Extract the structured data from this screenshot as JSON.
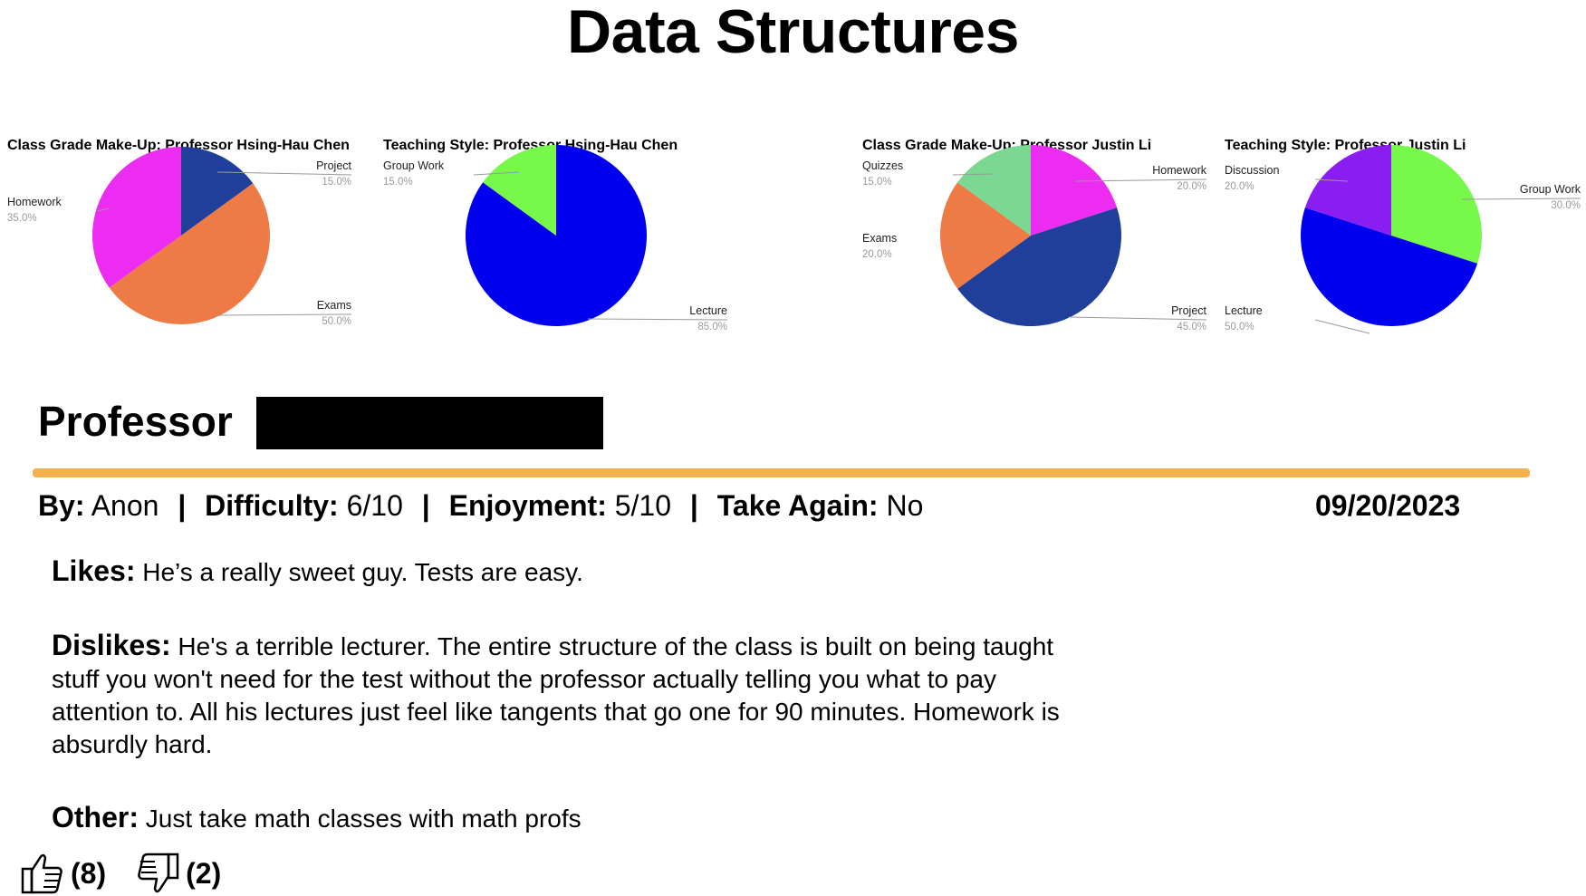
{
  "page": {
    "title": "Data Structures"
  },
  "chart_data": [
    {
      "type": "pie",
      "title": "Class Grade Make-Up: Professor Hsing-Hau Chen",
      "slices": [
        {
          "label": "Project",
          "value": 15.0,
          "color": "#1f3f9a"
        },
        {
          "label": "Exams",
          "value": 50.0,
          "color": "#ee7a45"
        },
        {
          "label": "Homework",
          "value": 35.0,
          "color": "#ec2cf0"
        }
      ]
    },
    {
      "type": "pie",
      "title": "Teaching Style: Professor Hsing-Hau Chen",
      "slices": [
        {
          "label": "Lecture",
          "value": 85.0,
          "color": "#0000ee"
        },
        {
          "label": "Group Work",
          "value": 15.0,
          "color": "#78f84a"
        }
      ]
    },
    {
      "type": "pie",
      "title": "Class Grade Make-Up: Professor Justin Li",
      "slices": [
        {
          "label": "Homework",
          "value": 20.0,
          "color": "#ec2cf0"
        },
        {
          "label": "Project",
          "value": 45.0,
          "color": "#1f3f9a"
        },
        {
          "label": "Exams",
          "value": 20.0,
          "color": "#ee7a45"
        },
        {
          "label": "Quizzes",
          "value": 15.0,
          "color": "#7ad892"
        }
      ]
    },
    {
      "type": "pie",
      "title": "Teaching Style: Professor Justin Li",
      "slices": [
        {
          "label": "Group Work",
          "value": 30.0,
          "color": "#78f84a"
        },
        {
          "label": "Lecture",
          "value": 50.0,
          "color": "#0000ee"
        },
        {
          "label": "Discussion",
          "value": 20.0,
          "color": "#8a1ef0"
        }
      ]
    }
  ],
  "review": {
    "heading": "Professor",
    "by_label": "By:",
    "by_value": "Anon",
    "difficulty_label": "Difficulty:",
    "difficulty_value": "6/10",
    "enjoyment_label": "Enjoyment:",
    "enjoyment_value": "5/10",
    "take_again_label": "Take Again:",
    "take_again_value": "No",
    "separator": "|",
    "date": "09/20/2023",
    "likes_label": "Likes:",
    "likes_text": "He’s a really sweet guy. Tests are easy.",
    "dislikes_label": "Dislikes:",
    "dislikes_text": "He's a terrible lecturer. The entire structure of the class is built on being taught stuff you won't need for the test without the professor actually telling you what to pay attention to. All his lectures just feel like tangents that go one for 90 minutes. Homework is absurdly hard.",
    "other_label": "Other:",
    "other_text": "Just take math classes with math profs",
    "thumbs_up_count": "(8)",
    "thumbs_down_count": "(2)",
    "thumbs_up_icon": "thumbs-up-icon",
    "thumbs_down_icon": "thumbs-down-icon",
    "divider_color": "#f5b04f"
  }
}
